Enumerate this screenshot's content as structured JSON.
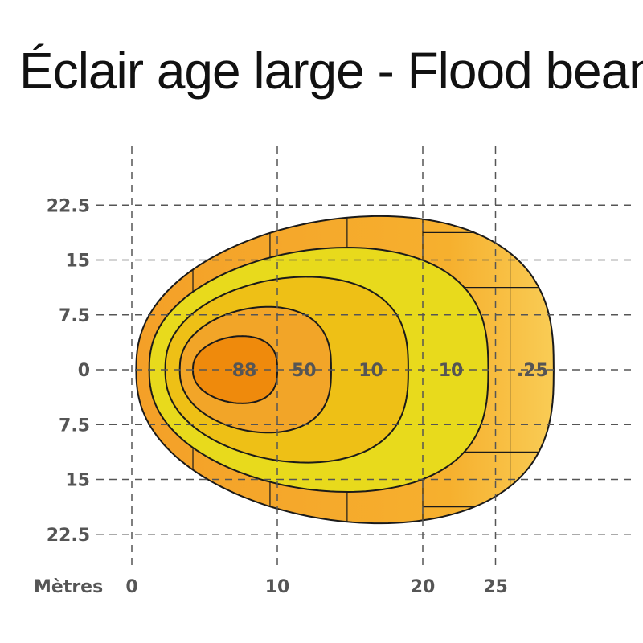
{
  "title": "Éclair age large -  Flood beam",
  "chart_data": {
    "type": "isolux contour",
    "title": "Éclair age large -  Flood beam",
    "xlabel": "Mètres",
    "x_ticks": [
      0,
      10,
      20,
      25
    ],
    "y_ticks": [
      {
        "value": 22.5,
        "label": "22.5"
      },
      {
        "value": 15,
        "label": "15"
      },
      {
        "value": 7.5,
        "label": "7.5"
      },
      {
        "value": 0,
        "label": "0"
      },
      {
        "value": -7.5,
        "label": "7.5"
      },
      {
        "value": -15,
        "label": "15"
      },
      {
        "value": -22.5,
        "label": "22.5"
      }
    ],
    "grid": true,
    "xlim": [
      0,
      30
    ],
    "ylim": [
      -25,
      25
    ],
    "contours": [
      {
        "label": ".25",
        "x_extent": [
          0.3,
          29
        ],
        "half_width": 21,
        "label_x": 28.2,
        "color": "#f5b335"
      },
      {
        "label": "10",
        "x_extent": [
          1.2,
          24.5
        ],
        "half_width": 16.7,
        "label_x": 22.6,
        "color": "#e8da1c"
      },
      {
        "label": "10",
        "x_extent": [
          2.3,
          19
        ],
        "half_width": 12.7,
        "label_x": 17.1,
        "color": "#eec016"
      },
      {
        "label": "50",
        "x_extent": [
          3.3,
          13.7
        ],
        "half_width": 8.6,
        "label_x": 12.5,
        "color": "#f2a528"
      },
      {
        "label": "88",
        "x_extent": [
          4.2,
          10
        ],
        "half_width": 4.6,
        "label_x": 8.4,
        "color": "#ef8a0c"
      }
    ]
  }
}
